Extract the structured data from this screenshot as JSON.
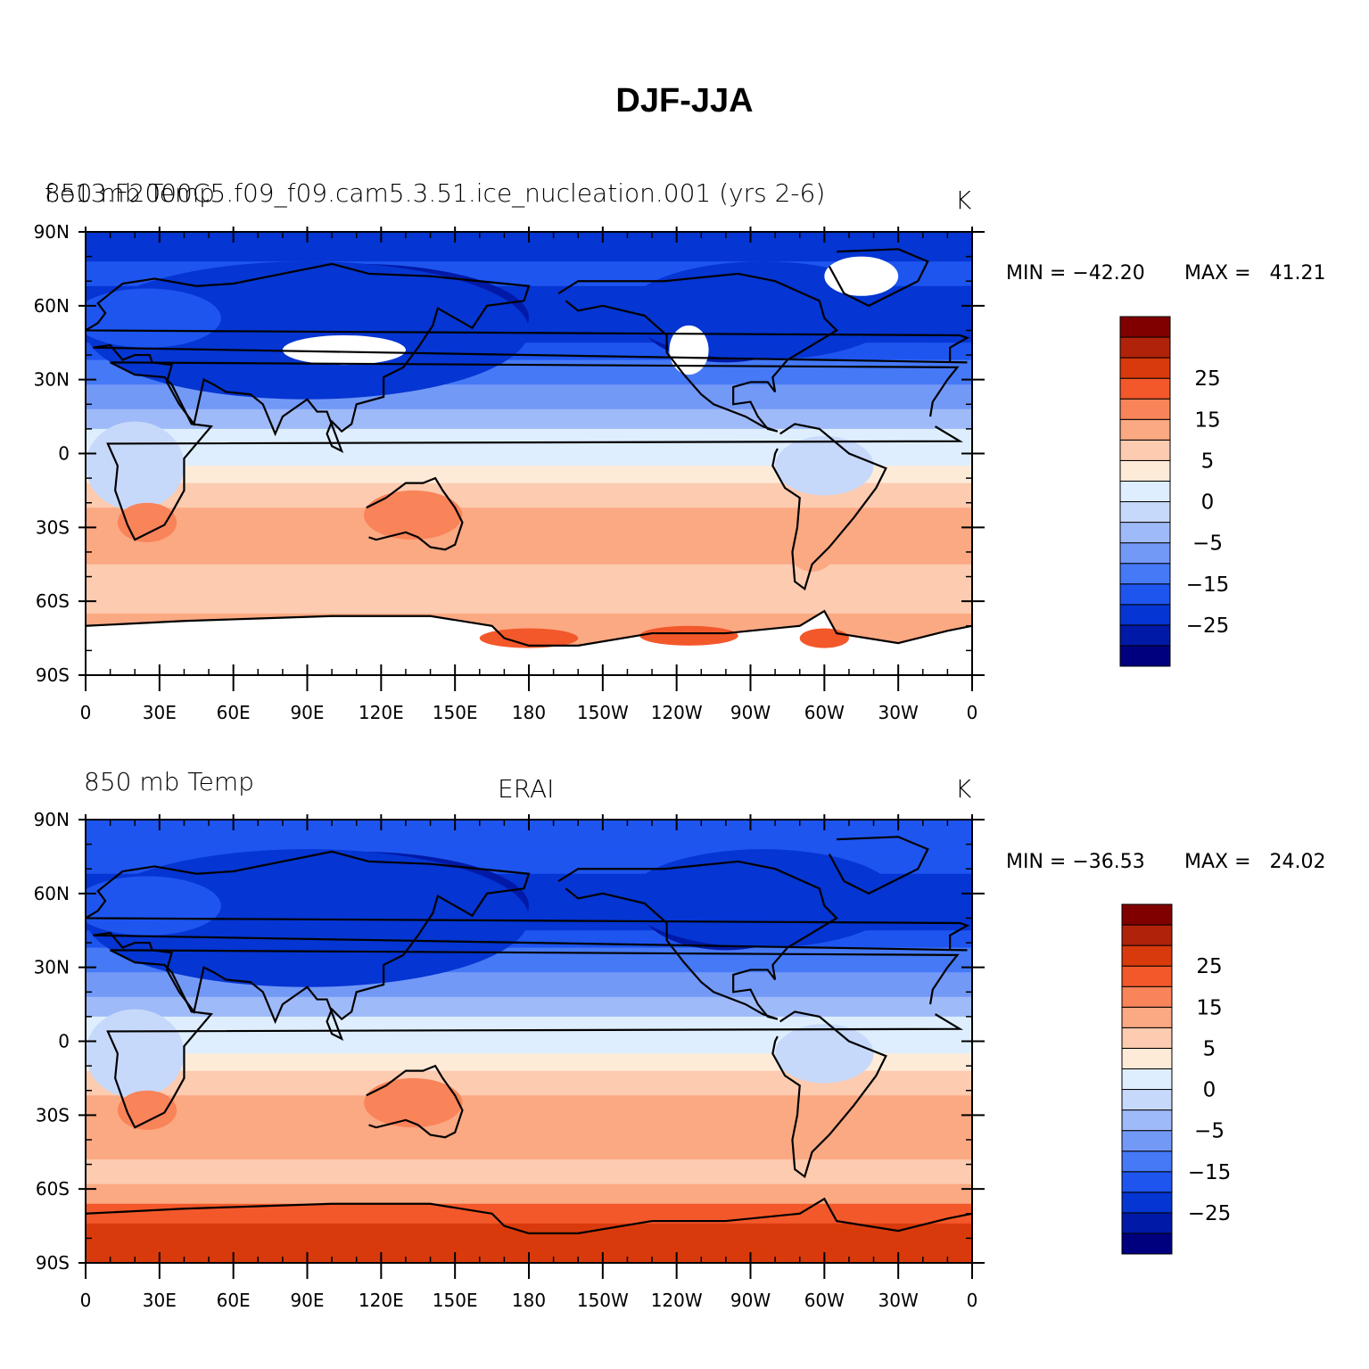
{
  "title": "DJF-JJA",
  "colorbar_colors": [
    "#00007f",
    "#0019a6",
    "#0535d2",
    "#1e55ef",
    "#4579f6",
    "#7399f7",
    "#9fbaf8",
    "#c7d9fb",
    "#deeefe",
    "#fdebd8",
    "#fccbb0",
    "#fba983",
    "#f9845a",
    "#f3582a",
    "#d93a0c",
    "#b0220a",
    "#800000"
  ],
  "colorbar_labels": [
    "−25",
    "−15",
    "−5",
    "0",
    "5",
    "15",
    "25"
  ],
  "lat_labels": [
    "90N",
    "60N",
    "30N",
    "0",
    "30S",
    "60S",
    "90S"
  ],
  "lon_labels": [
    "0",
    "30E",
    "60E",
    "90E",
    "120E",
    "150E",
    "180",
    "150W",
    "120W",
    "90W",
    "60W",
    "30W",
    "0"
  ],
  "panels": [
    {
      "left_title": "850 mb Temp",
      "center_title": "f.e13.F2000C5.f09_f09.cam5.3.51.ice_nucleation.001 (yrs 2-6)",
      "right_title": "K",
      "min_label": "MIN = −42.20",
      "max_label": "MAX =   41.21",
      "antarctica_masked": true
    },
    {
      "left_title": "850 mb Temp",
      "center_title": "ERAI",
      "right_title": "K",
      "min_label": "MIN = −36.53",
      "max_label": "MAX =   24.02",
      "antarctica_masked": false
    }
  ]
}
